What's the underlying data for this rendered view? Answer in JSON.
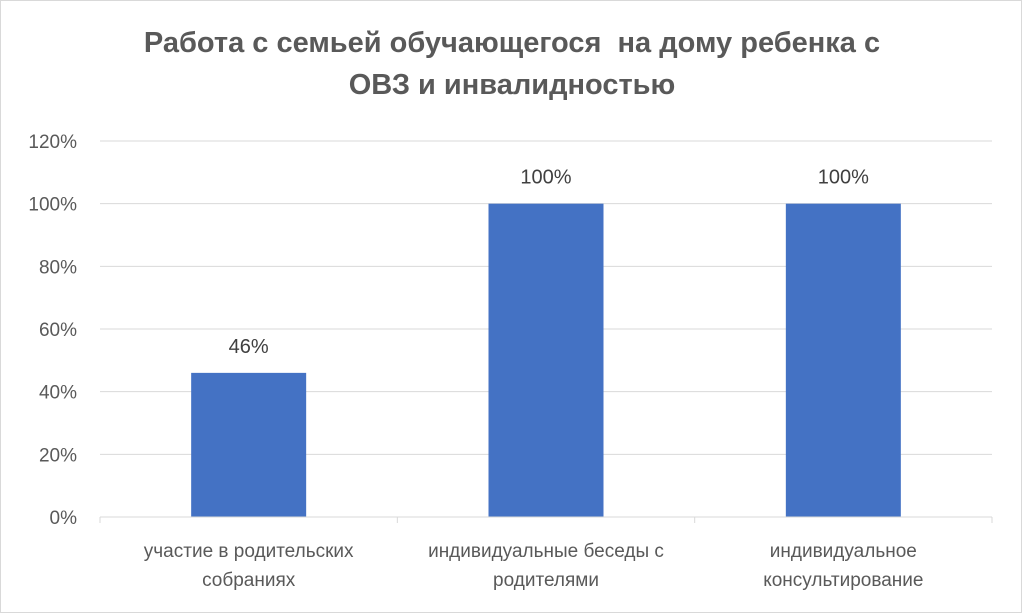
{
  "chart_data": {
    "type": "bar",
    "title_lines": [
      "Работа с семьей обучающегося  на дому ребенка с",
      "ОВЗ и инвалидностью"
    ],
    "categories": [
      [
        "участие  в родительских",
        "собраниях"
      ],
      [
        "индивидуальные беседы с",
        "родителями"
      ],
      [
        "индивидуальное",
        "консультирование"
      ]
    ],
    "values": [
      46,
      100,
      100
    ],
    "data_labels": [
      "46%",
      "100%",
      "100%"
    ],
    "y_ticks": [
      "0%",
      "20%",
      "40%",
      "60%",
      "80%",
      "100%",
      "120%"
    ],
    "ylim": [
      0,
      120
    ],
    "grid": true,
    "bar_color": "#4472c4"
  }
}
